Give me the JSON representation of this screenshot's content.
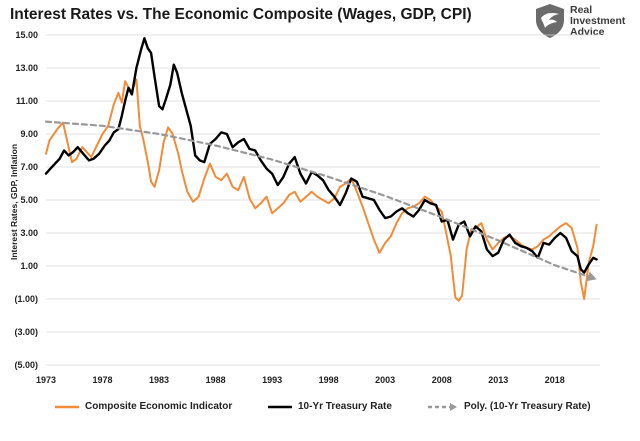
{
  "header": {
    "title": "Interest Rates vs. The Economic Composite (Wages, GDP, CPI)"
  },
  "logo": {
    "line1": "Real",
    "line2": "Investment",
    "line3": "Advice",
    "icon": "eagle-shield-icon"
  },
  "colors": {
    "composite": "#F28C38",
    "treasury": "#000000",
    "trend": "#999999",
    "grid": "#d9d9d9"
  },
  "chart_data": {
    "type": "line",
    "title": "Interest Rates vs. The Economic Composite (Wages, GDP, CPI)",
    "ylabel": "Interest Rates, GDP, Inflation",
    "xlabel": "",
    "xlim": [
      1973,
      2022
    ],
    "ylim": [
      -5,
      15
    ],
    "y_ticks": [
      15,
      13,
      11,
      9,
      7,
      5,
      3,
      1,
      -1,
      -3,
      -5
    ],
    "y_tick_labels": [
      "15.00",
      "13.00",
      "11.00",
      "9.00",
      "7.00",
      "5.00",
      "3.00",
      "1.00",
      "(1.00)",
      "(3.00)",
      "(5.00)"
    ],
    "x_ticks": [
      1973,
      1978,
      1983,
      1988,
      1993,
      1998,
      2003,
      2008,
      2013,
      2018
    ],
    "x_tick_labels": [
      "1973",
      "1978",
      "1983",
      "1988",
      "1993",
      "1998",
      "2003",
      "2008",
      "2013",
      "2018"
    ],
    "grid": "horizontal",
    "legend_position": "bottom",
    "series": [
      {
        "name": "Composite Economic Indicator",
        "style": "solid",
        "x": [
          1973.0,
          1973.3,
          1973.6,
          1974.0,
          1974.5,
          1975.0,
          1975.3,
          1975.7,
          1976.2,
          1976.6,
          1977.0,
          1977.5,
          1978.0,
          1978.5,
          1979.0,
          1979.4,
          1979.7,
          1980.0,
          1980.3,
          1980.6,
          1981.0,
          1981.3,
          1981.6,
          1982.0,
          1982.3,
          1982.6,
          1983.0,
          1983.4,
          1983.8,
          1984.2,
          1984.7,
          1985.0,
          1985.5,
          1986.0,
          1986.5,
          1987.0,
          1987.5,
          1988.0,
          1988.5,
          1989.0,
          1989.5,
          1990.0,
          1990.5,
          1991.0,
          1991.5,
          1992.0,
          1992.5,
          1993.0,
          1993.5,
          1994.0,
          1994.5,
          1995.0,
          1995.5,
          1996.0,
          1996.5,
          1997.0,
          1997.5,
          1998.0,
          1998.5,
          1999.0,
          1999.5,
          2000.0,
          2000.5,
          2001.0,
          2001.5,
          2002.0,
          2002.5,
          2003.0,
          2003.5,
          2004.0,
          2004.5,
          2005.0,
          2005.5,
          2006.0,
          2006.5,
          2007.0,
          2007.5,
          2008.0,
          2008.4,
          2008.8,
          2009.2,
          2009.5,
          2009.8,
          2010.2,
          2010.6,
          2011.0,
          2011.5,
          2012.0,
          2012.5,
          2013.0,
          2013.5,
          2014.0,
          2014.5,
          2015.0,
          2015.5,
          2016.0,
          2016.5,
          2017.0,
          2017.5,
          2018.0,
          2018.5,
          2019.0,
          2019.5,
          2020.0,
          2020.3,
          2020.6,
          2021.0,
          2021.4,
          2021.7
        ],
        "y": [
          7.8,
          8.6,
          8.9,
          9.3,
          9.7,
          8.2,
          7.3,
          7.5,
          8.2,
          7.9,
          7.6,
          8.3,
          9.0,
          9.5,
          10.8,
          11.5,
          10.9,
          12.2,
          11.8,
          11.6,
          12.3,
          9.5,
          8.7,
          7.3,
          6.1,
          5.8,
          6.8,
          8.5,
          9.4,
          9.0,
          7.8,
          6.8,
          5.5,
          4.9,
          5.2,
          6.3,
          7.2,
          6.4,
          6.2,
          6.6,
          5.8,
          5.6,
          6.4,
          5.1,
          4.5,
          4.8,
          5.2,
          4.2,
          4.5,
          4.8,
          5.3,
          5.5,
          4.9,
          5.2,
          5.5,
          5.2,
          5.0,
          4.8,
          5.1,
          5.8,
          6.0,
          6.3,
          5.5,
          4.6,
          3.6,
          2.6,
          1.8,
          2.4,
          2.8,
          3.6,
          4.2,
          4.5,
          4.6,
          4.8,
          5.2,
          5.0,
          4.6,
          4.3,
          3.0,
          1.6,
          -0.9,
          -1.1,
          -0.8,
          2.0,
          3.2,
          3.3,
          3.6,
          2.6,
          2.0,
          2.4,
          2.7,
          2.8,
          2.6,
          2.3,
          2.1,
          2.0,
          2.2,
          2.6,
          2.8,
          3.1,
          3.4,
          3.6,
          3.3,
          2.1,
          0.0,
          -1.0,
          1.2,
          2.2,
          3.5
        ]
      },
      {
        "name": "10-Yr Treasury Rate",
        "style": "solid",
        "x": [
          1973.0,
          1973.4,
          1973.8,
          1974.2,
          1974.6,
          1975.0,
          1975.4,
          1975.8,
          1976.3,
          1976.8,
          1977.2,
          1977.7,
          1978.2,
          1978.6,
          1979.0,
          1979.4,
          1979.7,
          1980.0,
          1980.3,
          1980.6,
          1981.0,
          1981.4,
          1981.7,
          1982.0,
          1982.3,
          1982.6,
          1983.0,
          1983.3,
          1983.6,
          1984.0,
          1984.3,
          1984.6,
          1985.0,
          1985.4,
          1985.8,
          1986.2,
          1986.6,
          1987.0,
          1987.5,
          1988.0,
          1988.5,
          1989.0,
          1989.5,
          1990.0,
          1990.5,
          1991.0,
          1991.5,
          1992.0,
          1992.5,
          1993.0,
          1993.5,
          1994.0,
          1994.5,
          1995.0,
          1995.5,
          1996.0,
          1996.5,
          1997.0,
          1997.5,
          1998.0,
          1998.5,
          1999.0,
          1999.5,
          2000.0,
          2000.5,
          2001.0,
          2001.5,
          2002.0,
          2002.5,
          2003.0,
          2003.5,
          2004.0,
          2004.5,
          2005.0,
          2005.5,
          2006.0,
          2006.5,
          2007.0,
          2007.5,
          2008.0,
          2008.5,
          2009.0,
          2009.5,
          2010.0,
          2010.5,
          2011.0,
          2011.5,
          2012.0,
          2012.5,
          2013.0,
          2013.5,
          2014.0,
          2014.5,
          2015.0,
          2015.5,
          2016.0,
          2016.5,
          2017.0,
          2017.5,
          2018.0,
          2018.5,
          2019.0,
          2019.5,
          2020.0,
          2020.3,
          2020.6,
          2021.0,
          2021.4,
          2021.7
        ],
        "y": [
          6.6,
          6.9,
          7.2,
          7.5,
          8.0,
          7.7,
          7.9,
          8.2,
          7.8,
          7.4,
          7.5,
          7.8,
          8.3,
          8.6,
          9.1,
          9.3,
          10.1,
          11.0,
          11.8,
          11.4,
          13.0,
          14.1,
          14.8,
          14.2,
          13.9,
          12.5,
          10.7,
          10.5,
          11.1,
          12.0,
          13.2,
          12.7,
          11.5,
          10.5,
          9.5,
          7.7,
          7.4,
          7.3,
          8.4,
          8.7,
          9.1,
          9.0,
          8.2,
          8.5,
          8.7,
          8.1,
          8.0,
          7.4,
          6.9,
          6.6,
          5.9,
          6.4,
          7.2,
          7.6,
          6.6,
          6.0,
          6.7,
          6.5,
          6.2,
          5.6,
          5.2,
          4.7,
          5.4,
          6.3,
          6.1,
          5.2,
          5.1,
          5.0,
          4.4,
          3.9,
          4.0,
          4.3,
          4.5,
          4.2,
          4.0,
          4.4,
          5.0,
          4.8,
          4.7,
          3.7,
          3.8,
          2.6,
          3.5,
          3.7,
          2.8,
          3.4,
          3.1,
          2.0,
          1.6,
          1.8,
          2.6,
          2.9,
          2.4,
          2.2,
          2.1,
          1.9,
          1.5,
          2.4,
          2.3,
          2.7,
          3.0,
          2.7,
          1.9,
          1.6,
          0.8,
          0.6,
          1.1,
          1.5,
          1.4
        ]
      },
      {
        "name": "Poly. (10-Yr Treasury Rate)",
        "style": "dashed",
        "x": [
          1973,
          1978,
          1983,
          1988,
          1993,
          1998,
          2003,
          2008,
          2013,
          2018,
          2021.7
        ],
        "y": [
          9.75,
          9.5,
          9.0,
          8.3,
          7.45,
          6.4,
          5.25,
          3.95,
          2.55,
          1.05,
          0.2
        ]
      }
    ]
  },
  "legend": {
    "items": [
      "Composite Economic Indicator",
      "10-Yr Treasury Rate",
      "Poly. (10-Yr Treasury Rate)"
    ]
  }
}
